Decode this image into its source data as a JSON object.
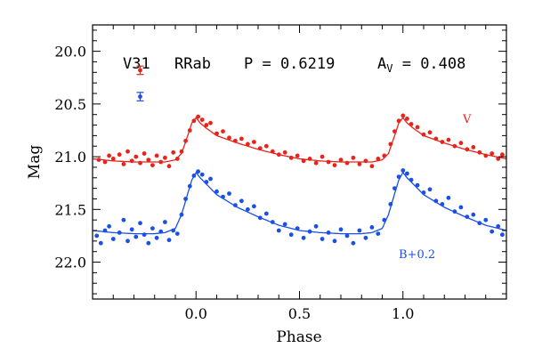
{
  "chart_data": {
    "type": "scatter",
    "title": "",
    "xlabel": "Phase",
    "ylabel": "Mag",
    "xlim": [
      -0.5,
      1.5
    ],
    "ylim": [
      22.35,
      19.75
    ],
    "y_inverted": true,
    "x_ticks": [
      {
        "value": 0.0,
        "label": "0.0"
      },
      {
        "value": 0.5,
        "label": "0.5"
      },
      {
        "value": 1.0,
        "label": "1.0"
      }
    ],
    "y_ticks": [
      {
        "value": 20.0,
        "label": "20.0"
      },
      {
        "value": 20.5,
        "label": "20.5"
      },
      {
        "value": 21.0,
        "label": "21.0"
      },
      {
        "value": 21.5,
        "label": "21.5"
      },
      {
        "value": 22.0,
        "label": "22.0"
      }
    ],
    "annotation": {
      "star": "V31",
      "type": "RRab",
      "period": "P = 0.6219",
      "amp_prefix": "A",
      "amp_sub": "V",
      "amp_value": " = 0.408"
    },
    "series": [
      {
        "name": "V",
        "label": "V",
        "color": "#e8231a",
        "error_bar": {
          "x": -0.27,
          "y": 20.18,
          "err": 0.04
        },
        "template_x": [
          0.0,
          0.02,
          0.05,
          0.1,
          0.2,
          0.3,
          0.4,
          0.5,
          0.6,
          0.7,
          0.8,
          0.85,
          0.9,
          0.93,
          0.96,
          0.98,
          1.0
        ],
        "template_y": [
          20.63,
          20.68,
          20.73,
          20.8,
          20.87,
          20.93,
          20.98,
          21.02,
          21.04,
          21.05,
          21.05,
          21.05,
          21.03,
          20.97,
          20.8,
          20.68,
          20.63
        ],
        "points": [
          [
            -0.47,
            21.03
          ],
          [
            -0.44,
            21.05
          ],
          [
            -0.42,
            20.99
          ],
          [
            -0.4,
            21.02
          ],
          [
            -0.37,
            20.98
          ],
          [
            -0.35,
            21.07
          ],
          [
            -0.33,
            20.95
          ],
          [
            -0.31,
            21.04
          ],
          [
            -0.29,
            21.0
          ],
          [
            -0.27,
            21.06
          ],
          [
            -0.25,
            20.97
          ],
          [
            -0.23,
            21.03
          ],
          [
            -0.21,
            21.08
          ],
          [
            -0.19,
            20.99
          ],
          [
            -0.17,
            21.05
          ],
          [
            -0.15,
            21.01
          ],
          [
            -0.13,
            21.09
          ],
          [
            -0.11,
            20.96
          ],
          [
            -0.09,
            21.02
          ],
          [
            -0.07,
            20.95
          ],
          [
            -0.05,
            20.85
          ],
          [
            -0.03,
            20.75
          ],
          [
            -0.01,
            20.66
          ],
          [
            0.01,
            20.62
          ],
          [
            0.03,
            20.65
          ],
          [
            0.05,
            20.7
          ],
          [
            0.07,
            20.68
          ],
          [
            0.1,
            20.78
          ],
          [
            0.13,
            20.76
          ],
          [
            0.16,
            20.82
          ],
          [
            0.19,
            20.85
          ],
          [
            0.22,
            20.83
          ],
          [
            0.25,
            20.88
          ],
          [
            0.28,
            20.86
          ],
          [
            0.31,
            20.92
          ],
          [
            0.34,
            20.9
          ],
          [
            0.37,
            20.95
          ],
          [
            0.4,
            20.98
          ],
          [
            0.43,
            20.96
          ],
          [
            0.46,
            21.01
          ],
          [
            0.49,
            20.99
          ],
          [
            0.52,
            21.04
          ],
          [
            0.55,
            21.02
          ],
          [
            0.58,
            21.06
          ],
          [
            0.61,
            21.0
          ],
          [
            0.64,
            21.05
          ],
          [
            0.67,
            21.08
          ],
          [
            0.7,
            21.03
          ],
          [
            0.73,
            21.06
          ],
          [
            0.76,
            21.01
          ],
          [
            0.79,
            21.07
          ],
          [
            0.82,
            21.04
          ],
          [
            0.85,
            21.09
          ],
          [
            0.88,
            21.02
          ],
          [
            0.91,
            20.99
          ],
          [
            0.94,
            20.88
          ],
          [
            0.96,
            20.76
          ],
          [
            0.98,
            20.66
          ],
          [
            1.0,
            20.61
          ],
          [
            1.02,
            20.64
          ],
          [
            1.04,
            20.69
          ],
          [
            1.07,
            20.72
          ],
          [
            1.1,
            20.79
          ],
          [
            1.13,
            20.77
          ],
          [
            1.16,
            20.83
          ],
          [
            1.19,
            20.86
          ],
          [
            1.22,
            20.84
          ],
          [
            1.25,
            20.9
          ],
          [
            1.28,
            20.87
          ],
          [
            1.31,
            20.93
          ],
          [
            1.34,
            20.91
          ],
          [
            1.37,
            20.96
          ],
          [
            1.4,
            20.99
          ],
          [
            1.43,
            20.97
          ],
          [
            1.46,
            21.02
          ],
          [
            1.48,
            20.98
          ]
        ]
      },
      {
        "name": "B+0.2",
        "label": "B+0.2",
        "color": "#1a4fe8",
        "error_bar": {
          "x": -0.27,
          "y": 20.43,
          "err": 0.04
        },
        "template_x": [
          0.0,
          0.02,
          0.05,
          0.1,
          0.2,
          0.3,
          0.4,
          0.5,
          0.6,
          0.7,
          0.8,
          0.85,
          0.9,
          0.93,
          0.96,
          0.98,
          1.0
        ],
        "template_y": [
          21.15,
          21.2,
          21.26,
          21.36,
          21.48,
          21.57,
          21.65,
          21.7,
          21.72,
          21.73,
          21.73,
          21.72,
          21.68,
          21.55,
          21.35,
          21.22,
          21.15
        ],
        "points": [
          [
            -0.48,
            21.75
          ],
          [
            -0.46,
            21.82
          ],
          [
            -0.44,
            21.7
          ],
          [
            -0.42,
            21.66
          ],
          [
            -0.4,
            21.78
          ],
          [
            -0.37,
            21.72
          ],
          [
            -0.35,
            21.6
          ],
          [
            -0.33,
            21.8
          ],
          [
            -0.31,
            21.69
          ],
          [
            -0.29,
            21.76
          ],
          [
            -0.27,
            21.63
          ],
          [
            -0.25,
            21.74
          ],
          [
            -0.23,
            21.82
          ],
          [
            -0.21,
            21.68
          ],
          [
            -0.19,
            21.77
          ],
          [
            -0.17,
            21.71
          ],
          [
            -0.15,
            21.62
          ],
          [
            -0.13,
            21.79
          ],
          [
            -0.11,
            21.7
          ],
          [
            -0.09,
            21.73
          ],
          [
            -0.07,
            21.55
          ],
          [
            -0.05,
            21.4
          ],
          [
            -0.03,
            21.28
          ],
          [
            -0.01,
            21.18
          ],
          [
            0.01,
            21.14
          ],
          [
            0.03,
            21.17
          ],
          [
            0.05,
            21.24
          ],
          [
            0.07,
            21.21
          ],
          [
            0.1,
            21.33
          ],
          [
            0.13,
            21.38
          ],
          [
            0.16,
            21.35
          ],
          [
            0.19,
            21.46
          ],
          [
            0.22,
            21.42
          ],
          [
            0.25,
            21.5
          ],
          [
            0.28,
            21.47
          ],
          [
            0.31,
            21.58
          ],
          [
            0.34,
            21.54
          ],
          [
            0.37,
            21.62
          ],
          [
            0.4,
            21.7
          ],
          [
            0.43,
            21.64
          ],
          [
            0.46,
            21.74
          ],
          [
            0.49,
            21.68
          ],
          [
            0.52,
            21.77
          ],
          [
            0.55,
            21.71
          ],
          [
            0.58,
            21.66
          ],
          [
            0.61,
            21.78
          ],
          [
            0.64,
            21.72
          ],
          [
            0.67,
            21.8
          ],
          [
            0.7,
            21.69
          ],
          [
            0.73,
            21.75
          ],
          [
            0.76,
            21.82
          ],
          [
            0.79,
            21.7
          ],
          [
            0.82,
            21.77
          ],
          [
            0.85,
            21.67
          ],
          [
            0.88,
            21.73
          ],
          [
            0.91,
            21.6
          ],
          [
            0.94,
            21.45
          ],
          [
            0.96,
            21.3
          ],
          [
            0.98,
            21.19
          ],
          [
            1.0,
            21.13
          ],
          [
            1.02,
            21.16
          ],
          [
            1.04,
            21.22
          ],
          [
            1.07,
            21.27
          ],
          [
            1.1,
            21.34
          ],
          [
            1.13,
            21.31
          ],
          [
            1.16,
            21.42
          ],
          [
            1.19,
            21.45
          ],
          [
            1.22,
            21.39
          ],
          [
            1.25,
            21.52
          ],
          [
            1.28,
            21.48
          ],
          [
            1.31,
            21.57
          ],
          [
            1.34,
            21.55
          ],
          [
            1.37,
            21.63
          ],
          [
            1.4,
            21.6
          ],
          [
            1.43,
            21.71
          ],
          [
            1.46,
            21.66
          ],
          [
            1.48,
            21.74
          ]
        ]
      }
    ],
    "grid": false,
    "legend": "error-bar markers at top-left, series labels on the right"
  }
}
